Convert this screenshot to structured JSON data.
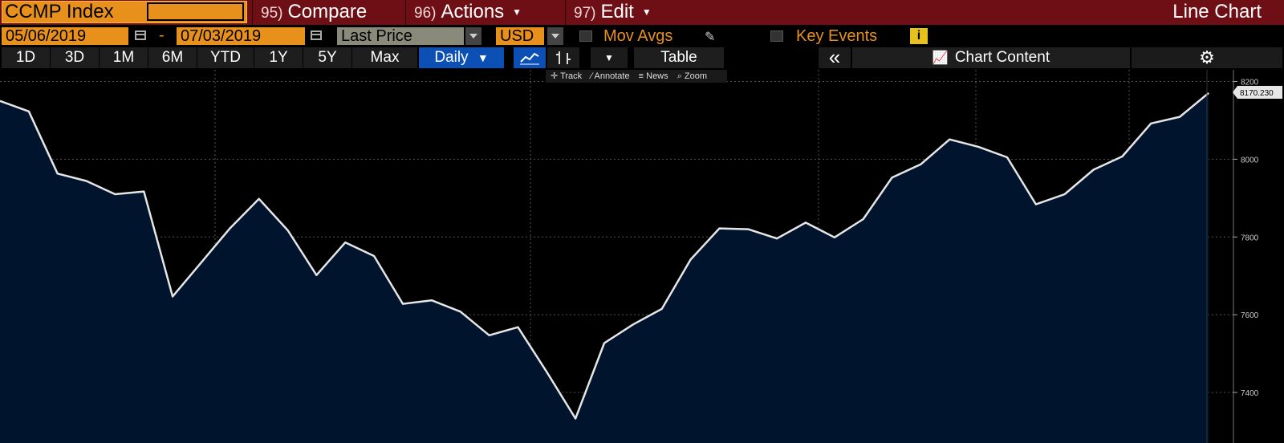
{
  "header": {
    "ticker": "CCMP Index",
    "menus": [
      {
        "num": "95)",
        "label": "Compare",
        "caret": true
      },
      {
        "num": "96)",
        "label": "Actions",
        "caret": true
      },
      {
        "num": "97)",
        "label": "Edit",
        "caret": true
      }
    ],
    "title": "Line Chart"
  },
  "controls": {
    "start_date": "05/06/2019",
    "date_sep": "-",
    "end_date": "07/03/2019",
    "field": "Last Price",
    "currency": "USD",
    "mov_avgs_label": "Mov Avgs",
    "key_events_label": "Key Events"
  },
  "toolbar": {
    "ranges": [
      "1D",
      "3D",
      "1M",
      "6M",
      "YTD",
      "1Y",
      "5Y",
      "Max"
    ],
    "period": "Daily",
    "table_label": "Table",
    "chart_content_label": "Chart Content",
    "tools": [
      "Track",
      "Annotate",
      "News",
      "Zoom"
    ]
  },
  "colors": {
    "header_bg": "#6e0f16",
    "accent_orange": "#e8901c",
    "selected_blue": "#0c4fb5",
    "area_fill": "#00142d",
    "line": "#e6e6e6"
  },
  "chart_data": {
    "type": "area",
    "title": "",
    "xlabel": "",
    "ylabel": "",
    "ylim": [
      7270,
      8230
    ],
    "yticks": [
      7400,
      7600,
      7800,
      8000,
      8200
    ],
    "ytick_labels": [
      "7400",
      "7600",
      "7800",
      "8000",
      "8200"
    ],
    "last_value_label": "8170.230",
    "grid": true,
    "series": [
      {
        "values": [
          8150,
          8123,
          7963,
          7944,
          7910,
          7917,
          7647,
          7735,
          7823,
          7898,
          7817,
          7702,
          7786,
          7751,
          7628,
          7637,
          7608,
          7547,
          7568,
          7453,
          7333,
          7527,
          7575,
          7615,
          7742,
          7822,
          7820,
          7796,
          7837,
          7799,
          7846,
          7953,
          7987,
          8051,
          8032,
          8005,
          7884,
          7910,
          7973,
          8007,
          8092,
          8109,
          8170.23
        ]
      }
    ]
  }
}
